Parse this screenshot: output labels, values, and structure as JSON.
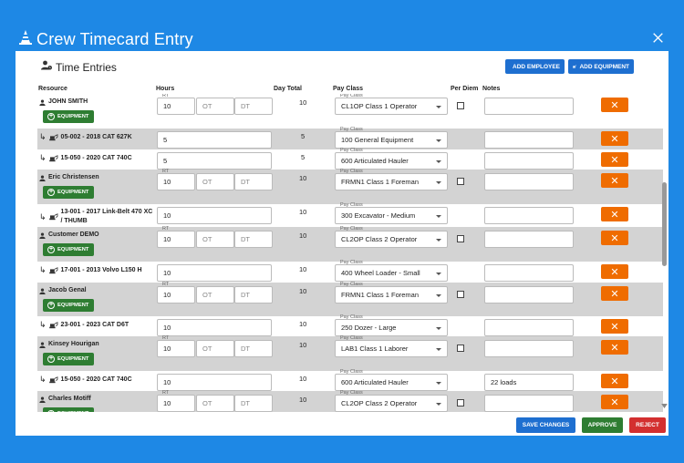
{
  "window": {
    "title": "Crew Timecard Entry",
    "close_icon": "close-icon"
  },
  "panel": {
    "title": "Time Entries",
    "add_employee_label": "ADD EMPLOYEE",
    "add_equipment_label": "ADD EQUIPMENT"
  },
  "columns": {
    "resource": "Resource",
    "hours": "Hours",
    "day_total": "Day Total",
    "pay_class": "Pay Class",
    "per_diem": "Per Diem",
    "notes": "Notes"
  },
  "labels": {
    "rt": "RT",
    "ot": "OT",
    "dt": "DT",
    "pay_class_small": "Pay Class",
    "equipment_button": "EQUIPMENT",
    "delete": "✕"
  },
  "rows": [
    {
      "kind": "employee",
      "name": "JOHN SMITH",
      "rt": "10",
      "day_total": "10",
      "pay_class": "CL1OP Class 1 Operator",
      "notes": ""
    },
    {
      "kind": "equipment",
      "name": "05-002 - 2018 CAT 627K",
      "hours": "5",
      "day_total": "5",
      "pay_class": "100 General Equipment",
      "notes": ""
    },
    {
      "kind": "equipment",
      "name": "15-050 - 2020 CAT 740C",
      "hours": "5",
      "day_total": "5",
      "pay_class": "600 Articulated Hauler",
      "notes": ""
    },
    {
      "kind": "employee",
      "name": "Eric Christensen",
      "rt": "10",
      "day_total": "10",
      "pay_class": "FRMN1 Class 1 Foreman",
      "notes": ""
    },
    {
      "kind": "equipment",
      "name": "13-001 - 2017 Link-Belt 470 XC / THUMB",
      "hours": "10",
      "day_total": "10",
      "pay_class": "300 Excavator - Medium",
      "notes": ""
    },
    {
      "kind": "employee",
      "name": "Customer DEMO",
      "rt": "10",
      "day_total": "10",
      "pay_class": "CL2OP Class 2 Operator",
      "notes": ""
    },
    {
      "kind": "equipment",
      "name": "17-001 - 2013 Volvo L150 H",
      "hours": "10",
      "day_total": "10",
      "pay_class": "400 Wheel Loader - Small",
      "notes": ""
    },
    {
      "kind": "employee",
      "name": "Jacob Genal",
      "rt": "10",
      "day_total": "10",
      "pay_class": "FRMN1 Class 1 Foreman",
      "notes": ""
    },
    {
      "kind": "equipment",
      "name": "23-001 - 2023 CAT D6T",
      "hours": "10",
      "day_total": "10",
      "pay_class": "250 Dozer - Large",
      "notes": ""
    },
    {
      "kind": "employee",
      "name": "Kinsey Hourigan",
      "rt": "10",
      "day_total": "10",
      "pay_class": "LAB1 Class 1 Laborer",
      "notes": ""
    },
    {
      "kind": "equipment",
      "name": "15-050 - 2020 CAT 740C",
      "hours": "10",
      "day_total": "10",
      "pay_class": "600 Articulated Hauler",
      "notes": "22 loads"
    },
    {
      "kind": "employee",
      "name": "Charles Motiff",
      "rt": "10",
      "day_total": "10",
      "pay_class": "CL2OP Class 2 Operator",
      "notes": ""
    }
  ],
  "footer": {
    "save_label": "SAVE CHANGES",
    "approve_label": "APPROVE",
    "reject_label": "REJECT"
  },
  "colors": {
    "brand": "#1e88e5",
    "delete": "#ef6c00",
    "equipment": "#2e7d32",
    "reject": "#d32f2f",
    "row_grey": "#d3d3d3"
  }
}
